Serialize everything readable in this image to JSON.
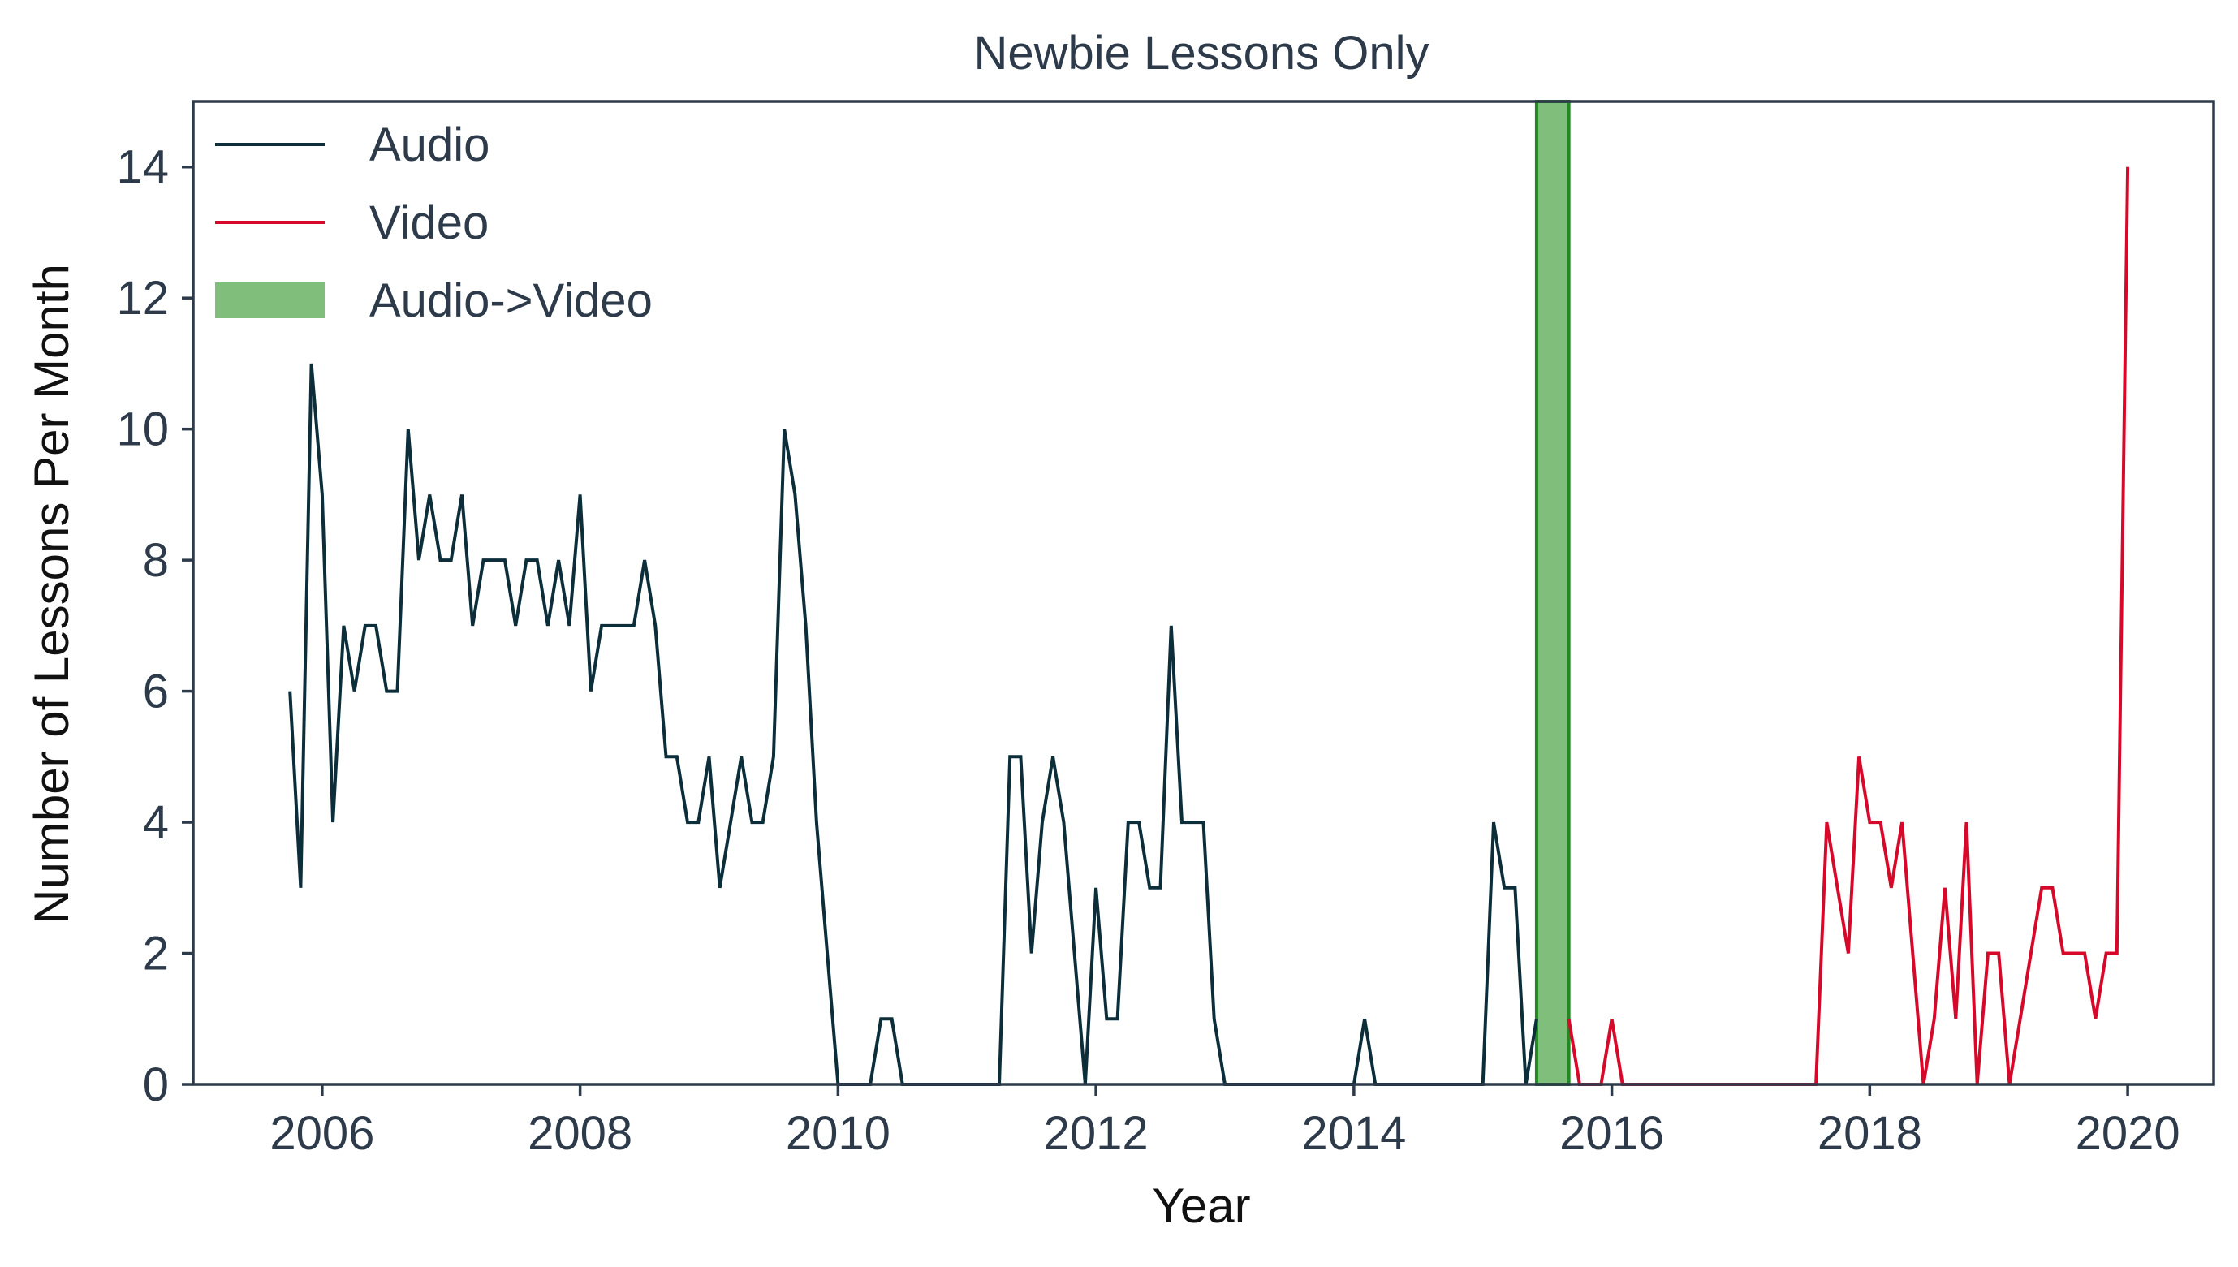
{
  "chart_data": {
    "type": "line",
    "title": "Newbie Lessons Only",
    "xlabel": "Year",
    "ylabel": "Number of Lessons Per Month",
    "xlim": [
      "2005-01",
      "2020-09"
    ],
    "ylim": [
      0,
      15
    ],
    "xticks": [
      2006,
      2008,
      2010,
      2012,
      2014,
      2016,
      2018,
      2020
    ],
    "xtick_labels": [
      "2006",
      "2008",
      "2010",
      "2012",
      "2014",
      "2016",
      "2018",
      "2020"
    ],
    "yticks": [
      0,
      2,
      4,
      6,
      8,
      10,
      12,
      14
    ],
    "ytick_labels": [
      "0",
      "2",
      "4",
      "6",
      "8",
      "10",
      "12",
      "14"
    ],
    "grid": false,
    "legend_position": "top-left",
    "series": [
      {
        "name": "Audio",
        "color": "#0b2e3a",
        "x": [
          "2005-10",
          "2005-11",
          "2005-12",
          "2006-01",
          "2006-02",
          "2006-03",
          "2006-04",
          "2006-05",
          "2006-06",
          "2006-07",
          "2006-08",
          "2006-09",
          "2006-10",
          "2006-11",
          "2006-12",
          "2007-01",
          "2007-02",
          "2007-03",
          "2007-04",
          "2007-05",
          "2007-06",
          "2007-07",
          "2007-08",
          "2007-09",
          "2007-10",
          "2007-11",
          "2007-12",
          "2008-01",
          "2008-02",
          "2008-03",
          "2008-04",
          "2008-05",
          "2008-06",
          "2008-07",
          "2008-08",
          "2008-09",
          "2008-10",
          "2008-11",
          "2008-12",
          "2009-01",
          "2009-02",
          "2009-03",
          "2009-04",
          "2009-05",
          "2009-06",
          "2009-07",
          "2009-08",
          "2009-09",
          "2009-10",
          "2009-11",
          "2009-12",
          "2010-01",
          "2010-02",
          "2010-03",
          "2010-04",
          "2010-05",
          "2010-06",
          "2010-07",
          "2010-08",
          "2010-09",
          "2010-10",
          "2010-11",
          "2010-12",
          "2011-01",
          "2011-02",
          "2011-03",
          "2011-04",
          "2011-05",
          "2011-06",
          "2011-07",
          "2011-08",
          "2011-09",
          "2011-10",
          "2011-11",
          "2011-12",
          "2012-01",
          "2012-02",
          "2012-03",
          "2012-04",
          "2012-05",
          "2012-06",
          "2012-07",
          "2012-08",
          "2012-09",
          "2012-10",
          "2012-11",
          "2012-12",
          "2013-01",
          "2013-02",
          "2013-03",
          "2013-04",
          "2013-05",
          "2013-06",
          "2013-07",
          "2013-08",
          "2013-09",
          "2013-10",
          "2013-11",
          "2013-12",
          "2014-01",
          "2014-02",
          "2014-03",
          "2014-04",
          "2014-05",
          "2014-06",
          "2014-07",
          "2014-08",
          "2014-09",
          "2014-10",
          "2014-11",
          "2014-12",
          "2015-01",
          "2015-02",
          "2015-03",
          "2015-04",
          "2015-05",
          "2015-06"
        ],
        "values": [
          6,
          3,
          11,
          9,
          4,
          7,
          6,
          7,
          7,
          6,
          6,
          10,
          8,
          9,
          8,
          8,
          9,
          7,
          8,
          8,
          8,
          7,
          8,
          8,
          7,
          8,
          7,
          9,
          6,
          7,
          7,
          7,
          7,
          8,
          7,
          5,
          5,
          4,
          4,
          5,
          3,
          4,
          5,
          4,
          4,
          5,
          10,
          9,
          7,
          4,
          2,
          0,
          0,
          0,
          0,
          1,
          1,
          0,
          0,
          0,
          0,
          0,
          0,
          0,
          0,
          0,
          0,
          5,
          5,
          2,
          4,
          5,
          4,
          2,
          0,
          3,
          1,
          1,
          4,
          4,
          3,
          3,
          7,
          4,
          4,
          4,
          1,
          0,
          0,
          0,
          0,
          0,
          0,
          0,
          0,
          0,
          0,
          0,
          0,
          0,
          1,
          0,
          0,
          0,
          0,
          0,
          0,
          0,
          0,
          0,
          0,
          0,
          4,
          3,
          3,
          0,
          1
        ]
      },
      {
        "name": "Video",
        "color": "#d7092a",
        "x": [
          "2015-09",
          "2015-10",
          "2015-11",
          "2015-12",
          "2016-01",
          "2016-02",
          "2016-03",
          "2016-04",
          "2016-05",
          "2016-06",
          "2016-07",
          "2016-08",
          "2016-09",
          "2016-10",
          "2016-11",
          "2016-12",
          "2017-01",
          "2017-02",
          "2017-03",
          "2017-04",
          "2017-05",
          "2017-06",
          "2017-07",
          "2017-08",
          "2017-09",
          "2017-10",
          "2017-11",
          "2017-12",
          "2018-01",
          "2018-02",
          "2018-03",
          "2018-04",
          "2018-05",
          "2018-06",
          "2018-07",
          "2018-08",
          "2018-09",
          "2018-10",
          "2018-11",
          "2018-12",
          "2019-01",
          "2019-02",
          "2019-03",
          "2019-04",
          "2019-05",
          "2019-06",
          "2019-07",
          "2019-08",
          "2019-09",
          "2019-10",
          "2019-11",
          "2019-12",
          "2020-01"
        ],
        "values": [
          1,
          0,
          0,
          0,
          1,
          0,
          0,
          0,
          0,
          0,
          0,
          0,
          0,
          0,
          0,
          0,
          0,
          0,
          0,
          0,
          0,
          0,
          0,
          0,
          4,
          3,
          2,
          5,
          4,
          4,
          3,
          4,
          2,
          0,
          1,
          3,
          1,
          4,
          0,
          2,
          2,
          0,
          1,
          2,
          3,
          3,
          2,
          2,
          2,
          1,
          2,
          2,
          14
        ]
      }
    ],
    "spans": [
      {
        "name": "Audio->Video",
        "start": "2015-06",
        "end": "2015-09",
        "color": "#7fbf7b",
        "edge_color": "#1f8a1f"
      }
    ]
  }
}
